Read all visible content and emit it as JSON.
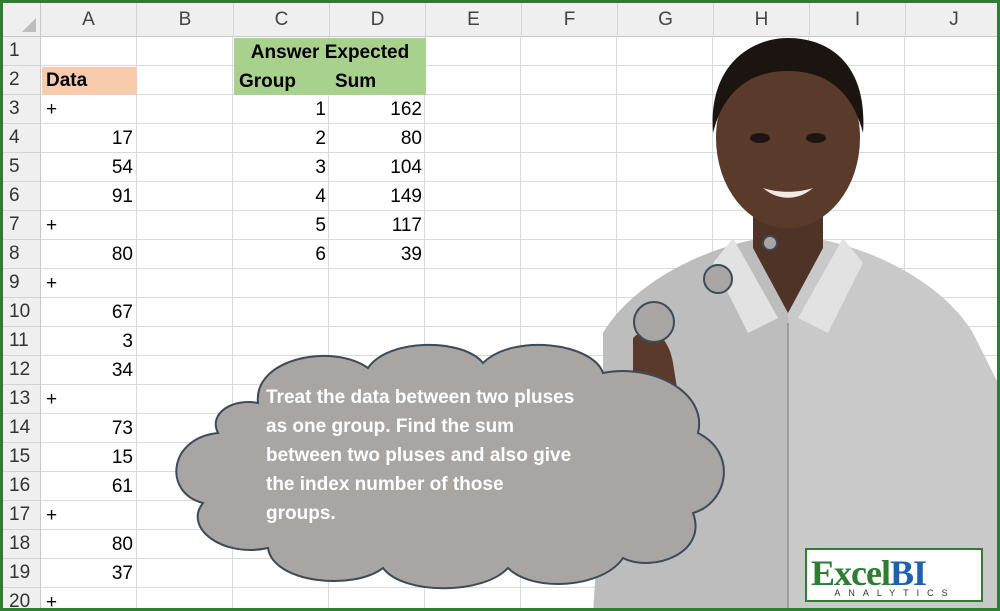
{
  "columns": [
    "A",
    "B",
    "C",
    "D",
    "E",
    "F",
    "G",
    "H",
    "I",
    "J"
  ],
  "rows": [
    "1",
    "2",
    "3",
    "4",
    "5",
    "6",
    "7",
    "8",
    "9",
    "10",
    "11",
    "12",
    "13",
    "14",
    "15",
    "16",
    "17",
    "18",
    "19",
    "20"
  ],
  "data_header": "Data",
  "data_values": [
    "+",
    "17",
    "54",
    "91",
    "+",
    "80",
    "+",
    "67",
    "3",
    "34",
    "+",
    "73",
    "15",
    "61",
    "+",
    "80",
    "37",
    "+"
  ],
  "answer": {
    "title": "Answer Expected",
    "group_header": "Group",
    "sum_header": "Sum",
    "groups": [
      "1",
      "2",
      "3",
      "4",
      "5",
      "6"
    ],
    "sums": [
      "162",
      "80",
      "104",
      "149",
      "117",
      "39"
    ]
  },
  "bubble_text": "Treat the data between two pluses as one group. Find the sum between two pluses and also give the index number of those groups.",
  "logo": {
    "excel": "Excel",
    "bi": "BI",
    "sub": "ANALYTICS"
  },
  "colors": {
    "data_header_fill": "#f8cbad",
    "answer_fill": "#a9d18e",
    "bubble_fill": "#a9a5a2",
    "frame": "#2e7d32"
  }
}
